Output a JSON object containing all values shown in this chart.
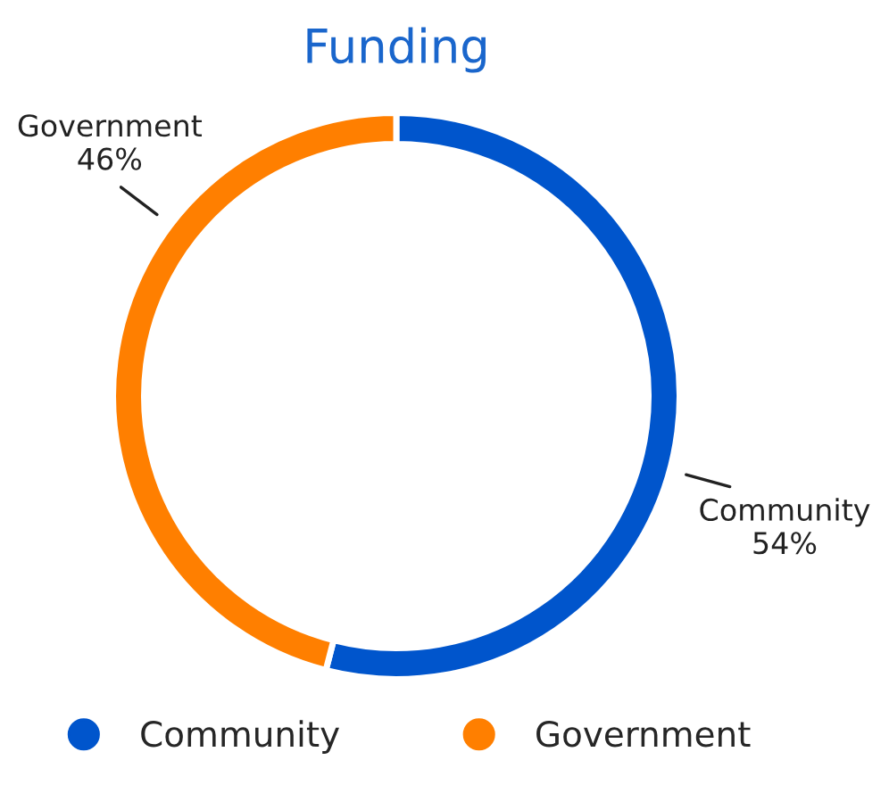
{
  "chart_data": {
    "type": "donut",
    "title": "Funding",
    "categories": [
      "Community",
      "Government"
    ],
    "values": [
      54,
      46
    ],
    "colors": [
      "#0055cc",
      "#ff7f00"
    ],
    "value_labels": [
      "54%",
      "46%"
    ],
    "legend": "bottom"
  }
}
